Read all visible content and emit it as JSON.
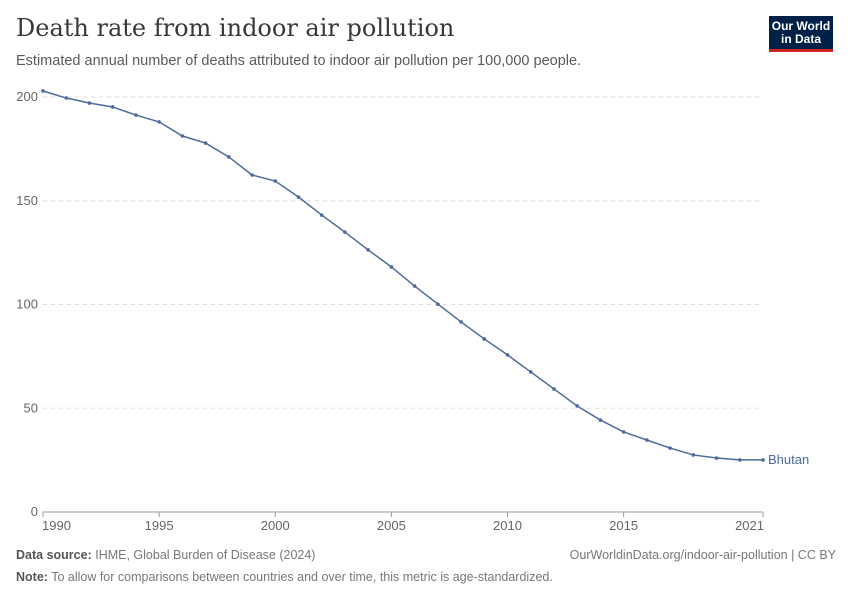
{
  "header": {
    "title": "Death rate from indoor air pollution",
    "subtitle": "Estimated annual number of deaths attributed to indoor air pollution per 100,000 people.",
    "logo": "Our World in Data",
    "logo_line1": "Our World",
    "logo_line2": "in Data"
  },
  "footer": {
    "source_label": "Data source:",
    "source": "IHME, Global Burden of Disease (2024)",
    "url": "OurWorldinData.org/indoor-air-pollution | CC BY",
    "note_label": "Note:",
    "note": "To allow for comparisons between countries and over time, this metric is age-standardized."
  },
  "chart_data": {
    "type": "line",
    "title": "Death rate from indoor air pollution",
    "xlim": [
      1990,
      2021
    ],
    "ylim": [
      0,
      200
    ],
    "xticks": [
      "1990",
      "1995",
      "2000",
      "2005",
      "2010",
      "2015",
      "2021"
    ],
    "yticks": [
      "0",
      "50",
      "100",
      "150",
      "200"
    ],
    "grid": "horizontal dashed",
    "series": [
      {
        "name": "Bhutan",
        "color": "#4c6a9c",
        "x": [
          1990,
          1991,
          1992,
          1993,
          1994,
          1995,
          1996,
          1997,
          1998,
          1999,
          2000,
          2001,
          2002,
          2003,
          2004,
          2005,
          2006,
          2007,
          2008,
          2009,
          2010,
          2011,
          2012,
          2013,
          2014,
          2015,
          2016,
          2017,
          2018,
          2019,
          2020,
          2021
        ],
        "values": [
          202.9,
          199.5,
          197.1,
          195.2,
          191.3,
          188,
          181.2,
          177.8,
          171.1,
          162.4,
          159.5,
          151.8,
          143.1,
          134.9,
          126.3,
          118.1,
          108.9,
          100.2,
          91.6,
          83.4,
          75.7,
          67.5,
          59.3,
          51.1,
          44.3,
          38.6,
          34.7,
          30.8,
          27.5,
          26,
          25.1,
          25.1
        ]
      }
    ]
  }
}
